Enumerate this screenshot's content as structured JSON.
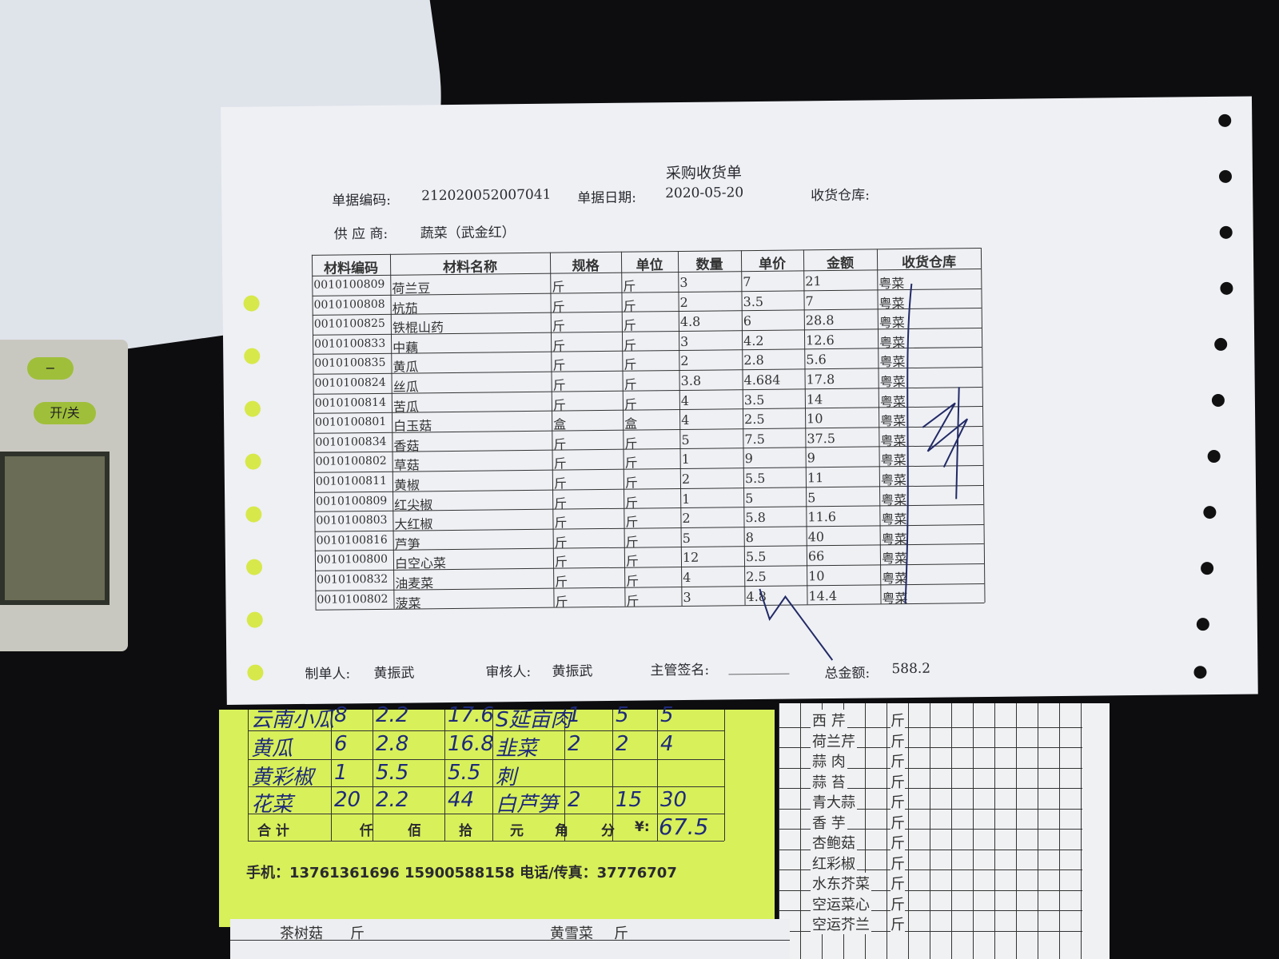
{
  "calculator": {
    "keys": [
      "−",
      "开/关"
    ]
  },
  "receipt": {
    "title": "采购收货单",
    "doc_no_label": "单据编码:",
    "doc_no": "212020052007041",
    "date_label": "单据日期:",
    "date": "2020-05-20",
    "warehouse_label": "收货仓库:",
    "supplier_label": "供 应 商:",
    "supplier": "蔬菜（武金红）",
    "table": {
      "headers": [
        "材料编码",
        "材料名称",
        "规格",
        "单位",
        "数量",
        "单价",
        "金额",
        "收货仓库"
      ],
      "rows": [
        [
          "0010100809",
          "荷兰豆",
          "斤",
          "斤",
          "3",
          "7",
          "21",
          "粤菜"
        ],
        [
          "0010100808",
          "杭茄",
          "斤",
          "斤",
          "2",
          "3.5",
          "7",
          "粤菜"
        ],
        [
          "0010100825",
          "铁棍山药",
          "斤",
          "斤",
          "4.8",
          "6",
          "28.8",
          "粤菜"
        ],
        [
          "0010100833",
          "中藕",
          "斤",
          "斤",
          "3",
          "4.2",
          "12.6",
          "粤菜"
        ],
        [
          "0010100835",
          "黄瓜",
          "斤",
          "斤",
          "2",
          "2.8",
          "5.6",
          "粤菜"
        ],
        [
          "0010100824",
          "丝瓜",
          "斤",
          "斤",
          "3.8",
          "4.684",
          "17.8",
          "粤菜"
        ],
        [
          "0010100814",
          "苦瓜",
          "斤",
          "斤",
          "4",
          "3.5",
          "14",
          "粤菜"
        ],
        [
          "0010100801",
          "白玉菇",
          "盒",
          "盒",
          "4",
          "2.5",
          "10",
          "粤菜"
        ],
        [
          "0010100834",
          "香菇",
          "斤",
          "斤",
          "5",
          "7.5",
          "37.5",
          "粤菜"
        ],
        [
          "0010100802",
          "草菇",
          "斤",
          "斤",
          "1",
          "9",
          "9",
          "粤菜"
        ],
        [
          "0010100811",
          "黄椒",
          "斤",
          "斤",
          "2",
          "5.5",
          "11",
          "粤菜"
        ],
        [
          "0010100809",
          "红尖椒",
          "斤",
          "斤",
          "1",
          "5",
          "5",
          "粤菜"
        ],
        [
          "0010100803",
          "大红椒",
          "斤",
          "斤",
          "2",
          "5.8",
          "11.6",
          "粤菜"
        ],
        [
          "0010100816",
          "芦笋",
          "斤",
          "斤",
          "5",
          "8",
          "40",
          "粤菜"
        ],
        [
          "0010100800",
          "白空心菜",
          "斤",
          "斤",
          "12",
          "5.5",
          "66",
          "粤菜"
        ],
        [
          "0010100832",
          "油麦菜",
          "斤",
          "斤",
          "4",
          "2.5",
          "10",
          "粤菜"
        ],
        [
          "0010100802",
          "菠菜",
          "斤",
          "斤",
          "3",
          "4.8",
          "14.4",
          "粤菜"
        ]
      ]
    },
    "footer": {
      "maker_label": "制单人:",
      "maker": "黄振武",
      "auditor_label": "审核人:",
      "auditor": "黄振武",
      "supervisor_label": "主管签名:",
      "total_label": "总金额:",
      "total": "588.2"
    }
  },
  "note": {
    "rows": [
      [
        "云南小瓜",
        "8",
        "2.2",
        "17.6",
        "S延亩肉",
        "1",
        "5",
        "5"
      ],
      [
        "黄瓜",
        "6",
        "2.8",
        "16.8",
        "韭菜",
        "2",
        "2",
        "4"
      ],
      [
        "黄彩椒",
        "1",
        "5.5",
        "5.5",
        "刺"
      ],
      [
        "花菜",
        "20",
        "2.2",
        "44",
        "白芦笋",
        "2",
        "15",
        "30"
      ]
    ],
    "total_labels": [
      "合 计",
      "仟",
      "佰",
      "拾",
      "元",
      "角",
      "分",
      "¥:"
    ],
    "total": "67.5",
    "contact": "手机：13761361696  15900588158  电话/传真：37776707"
  },
  "sheet": {
    "items": [
      [
        "西 芹",
        "斤"
      ],
      [
        "荷兰芹",
        "斤"
      ],
      [
        "蒜 肉",
        "斤"
      ],
      [
        "蒜 苔",
        "斤"
      ],
      [
        "青大蒜",
        "斤"
      ],
      [
        "香 芋",
        "斤"
      ],
      [
        "杏鲍菇",
        "斤"
      ],
      [
        "红彩椒",
        "斤"
      ],
      [
        "水东芥菜",
        "斤"
      ],
      [
        "空运菜心",
        "斤"
      ],
      [
        "空运芥兰",
        "斤"
      ]
    ],
    "bottom_items": [
      [
        "茶树菇",
        "斤"
      ],
      [
        "黄雪菜",
        "斤"
      ]
    ]
  }
}
